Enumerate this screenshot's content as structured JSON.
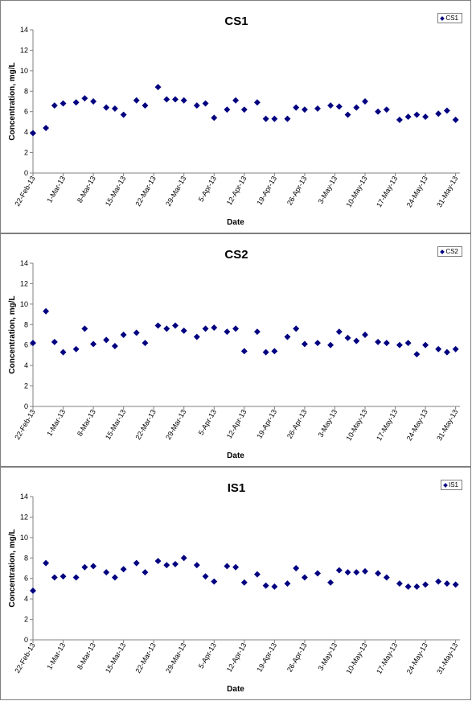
{
  "colors": {
    "marker": "#000080",
    "axis": "#808080",
    "text": "#000000"
  },
  "shared": {
    "date_ticks": [
      "22-Feb-13",
      "1-Mar-13",
      "8-Mar-13",
      "15-Mar-13",
      "22-Mar-13",
      "29-Mar-13",
      "5-Apr-13",
      "12-Apr-13",
      "19-Apr-13",
      "26-Apr-13",
      "3-May-13",
      "10-May-13",
      "17-May-13",
      "24-May-13",
      "31-May-13"
    ]
  },
  "chart_data": [
    {
      "type": "scatter",
      "title": "CS1",
      "xlabel": "Date",
      "ylabel": "Concentration, mg/L",
      "ylim": [
        0,
        14
      ],
      "yticks": [
        0,
        2,
        4,
        6,
        8,
        10,
        12,
        14
      ],
      "xlim": [
        "2013-02-22",
        "2013-06-01"
      ],
      "grid": false,
      "legend_position": "top-right",
      "series": [
        {
          "name": "CS1",
          "points": [
            [
              "2013-02-22",
              3.9
            ],
            [
              "2013-02-25",
              4.4
            ],
            [
              "2013-02-27",
              6.6
            ],
            [
              "2013-03-01",
              6.8
            ],
            [
              "2013-03-04",
              6.9
            ],
            [
              "2013-03-06",
              7.3
            ],
            [
              "2013-03-08",
              7.0
            ],
            [
              "2013-03-11",
              6.4
            ],
            [
              "2013-03-13",
              6.3
            ],
            [
              "2013-03-15",
              5.7
            ],
            [
              "2013-03-18",
              7.1
            ],
            [
              "2013-03-20",
              6.6
            ],
            [
              "2013-03-23",
              8.4
            ],
            [
              "2013-03-25",
              7.2
            ],
            [
              "2013-03-27",
              7.2
            ],
            [
              "2013-03-29",
              7.1
            ],
            [
              "2013-04-01",
              6.6
            ],
            [
              "2013-04-03",
              6.8
            ],
            [
              "2013-04-05",
              5.4
            ],
            [
              "2013-04-08",
              6.2
            ],
            [
              "2013-04-10",
              7.1
            ],
            [
              "2013-04-12",
              6.2
            ],
            [
              "2013-04-15",
              6.9
            ],
            [
              "2013-04-17",
              5.3
            ],
            [
              "2013-04-19",
              5.3
            ],
            [
              "2013-04-22",
              5.3
            ],
            [
              "2013-04-24",
              6.4
            ],
            [
              "2013-04-26",
              6.2
            ],
            [
              "2013-04-29",
              6.3
            ],
            [
              "2013-05-02",
              6.6
            ],
            [
              "2013-05-04",
              6.5
            ],
            [
              "2013-05-06",
              5.7
            ],
            [
              "2013-05-08",
              6.4
            ],
            [
              "2013-05-10",
              7.0
            ],
            [
              "2013-05-13",
              6.0
            ],
            [
              "2013-05-15",
              6.2
            ],
            [
              "2013-05-18",
              5.2
            ],
            [
              "2013-05-20",
              5.5
            ],
            [
              "2013-05-22",
              5.7
            ],
            [
              "2013-05-24",
              5.5
            ],
            [
              "2013-05-27",
              5.8
            ],
            [
              "2013-05-29",
              6.1
            ],
            [
              "2013-05-31",
              5.2
            ]
          ]
        }
      ]
    },
    {
      "type": "scatter",
      "title": "CS2",
      "xlabel": "Date",
      "ylabel": "Concentration, mg/L",
      "ylim": [
        0,
        14
      ],
      "yticks": [
        0,
        2,
        4,
        6,
        8,
        10,
        12,
        14
      ],
      "xlim": [
        "2013-02-22",
        "2013-06-01"
      ],
      "grid": false,
      "legend_position": "top-right",
      "series": [
        {
          "name": "CS2",
          "points": [
            [
              "2013-02-22",
              6.2
            ],
            [
              "2013-02-25",
              9.3
            ],
            [
              "2013-02-27",
              6.3
            ],
            [
              "2013-03-01",
              5.3
            ],
            [
              "2013-03-04",
              5.6
            ],
            [
              "2013-03-06",
              7.6
            ],
            [
              "2013-03-08",
              6.1
            ],
            [
              "2013-03-11",
              6.5
            ],
            [
              "2013-03-13",
              5.9
            ],
            [
              "2013-03-15",
              7.0
            ],
            [
              "2013-03-18",
              7.2
            ],
            [
              "2013-03-20",
              6.2
            ],
            [
              "2013-03-23",
              7.9
            ],
            [
              "2013-03-25",
              7.6
            ],
            [
              "2013-03-27",
              7.9
            ],
            [
              "2013-03-29",
              7.4
            ],
            [
              "2013-04-01",
              6.8
            ],
            [
              "2013-04-03",
              7.6
            ],
            [
              "2013-04-05",
              7.7
            ],
            [
              "2013-04-08",
              7.3
            ],
            [
              "2013-04-10",
              7.6
            ],
            [
              "2013-04-12",
              5.4
            ],
            [
              "2013-04-15",
              7.3
            ],
            [
              "2013-04-17",
              5.3
            ],
            [
              "2013-04-19",
              5.4
            ],
            [
              "2013-04-22",
              6.8
            ],
            [
              "2013-04-24",
              7.6
            ],
            [
              "2013-04-26",
              6.1
            ],
            [
              "2013-04-29",
              6.2
            ],
            [
              "2013-05-02",
              6.0
            ],
            [
              "2013-05-04",
              7.3
            ],
            [
              "2013-05-06",
              6.7
            ],
            [
              "2013-05-08",
              6.4
            ],
            [
              "2013-05-10",
              7.0
            ],
            [
              "2013-05-13",
              6.3
            ],
            [
              "2013-05-15",
              6.2
            ],
            [
              "2013-05-18",
              6.0
            ],
            [
              "2013-05-20",
              6.2
            ],
            [
              "2013-05-22",
              5.1
            ],
            [
              "2013-05-24",
              6.0
            ],
            [
              "2013-05-27",
              5.6
            ],
            [
              "2013-05-29",
              5.3
            ],
            [
              "2013-05-31",
              5.6
            ]
          ]
        }
      ]
    },
    {
      "type": "scatter",
      "title": "IS1",
      "xlabel": "Date",
      "ylabel": "Concentration, mg/L",
      "ylim": [
        0,
        14
      ],
      "yticks": [
        0,
        2,
        4,
        6,
        8,
        10,
        12,
        14
      ],
      "xlim": [
        "2013-02-22",
        "2013-06-01"
      ],
      "grid": false,
      "legend_position": "top-right",
      "series": [
        {
          "name": "IS1",
          "points": [
            [
              "2013-02-22",
              4.8
            ],
            [
              "2013-02-25",
              7.5
            ],
            [
              "2013-02-27",
              6.1
            ],
            [
              "2013-03-01",
              6.2
            ],
            [
              "2013-03-04",
              6.1
            ],
            [
              "2013-03-06",
              7.1
            ],
            [
              "2013-03-08",
              7.2
            ],
            [
              "2013-03-11",
              6.6
            ],
            [
              "2013-03-13",
              6.1
            ],
            [
              "2013-03-15",
              6.9
            ],
            [
              "2013-03-18",
              7.5
            ],
            [
              "2013-03-20",
              6.6
            ],
            [
              "2013-03-23",
              7.7
            ],
            [
              "2013-03-25",
              7.3
            ],
            [
              "2013-03-27",
              7.4
            ],
            [
              "2013-03-29",
              8.0
            ],
            [
              "2013-04-01",
              7.3
            ],
            [
              "2013-04-03",
              6.2
            ],
            [
              "2013-04-05",
              5.7
            ],
            [
              "2013-04-08",
              7.2
            ],
            [
              "2013-04-10",
              7.1
            ],
            [
              "2013-04-12",
              5.6
            ],
            [
              "2013-04-15",
              6.4
            ],
            [
              "2013-04-17",
              5.3
            ],
            [
              "2013-04-19",
              5.2
            ],
            [
              "2013-04-22",
              5.5
            ],
            [
              "2013-04-24",
              7.0
            ],
            [
              "2013-04-26",
              6.1
            ],
            [
              "2013-04-29",
              6.5
            ],
            [
              "2013-05-02",
              5.6
            ],
            [
              "2013-05-04",
              6.8
            ],
            [
              "2013-05-06",
              6.6
            ],
            [
              "2013-05-08",
              6.6
            ],
            [
              "2013-05-10",
              6.7
            ],
            [
              "2013-05-13",
              6.5
            ],
            [
              "2013-05-15",
              6.1
            ],
            [
              "2013-05-18",
              5.5
            ],
            [
              "2013-05-20",
              5.2
            ],
            [
              "2013-05-22",
              5.2
            ],
            [
              "2013-05-24",
              5.4
            ],
            [
              "2013-05-27",
              5.7
            ],
            [
              "2013-05-29",
              5.5
            ],
            [
              "2013-05-31",
              5.4
            ]
          ]
        }
      ]
    }
  ]
}
